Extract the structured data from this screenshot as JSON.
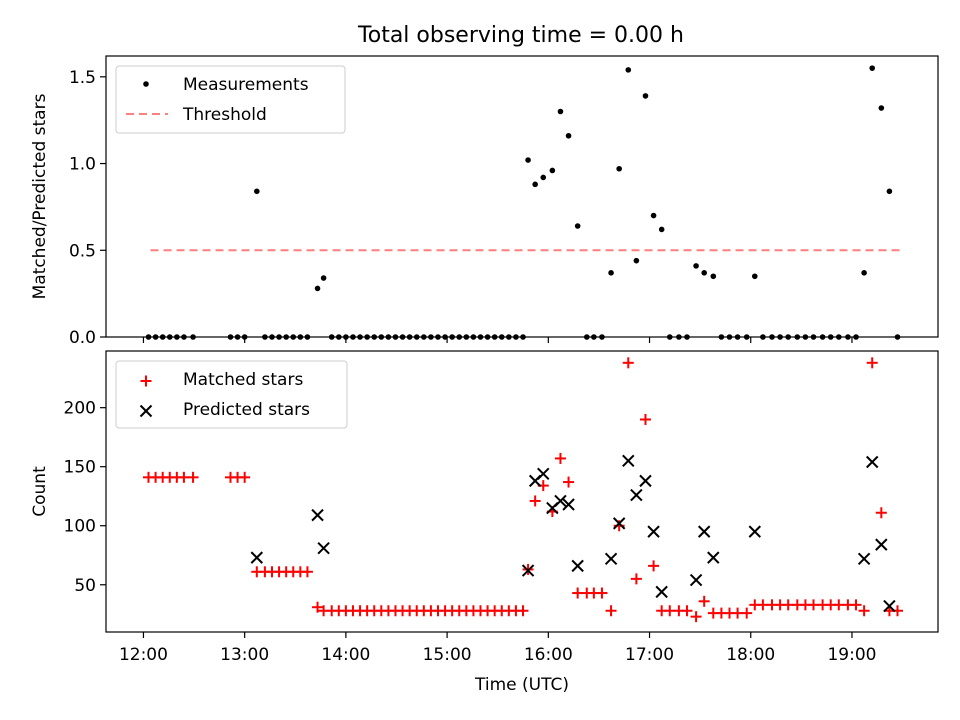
{
  "title": "Total observing time = 0.00 h",
  "colors": {
    "measure": "#000000",
    "threshold": "#ff7f7f",
    "matched": "#ff0000",
    "predicted": "#000000"
  },
  "chart_data": [
    {
      "type": "scatter",
      "ylabel": "Matched/Predicted stars",
      "ylim": [
        0,
        1.62
      ],
      "yticks": [
        0.0,
        0.5,
        1.0,
        1.5
      ],
      "ytick_labels": [
        "0.0",
        "0.5",
        "1.0",
        "1.5"
      ],
      "xlim_hours": [
        11.63,
        19.85
      ],
      "legend": {
        "placement": "top-left",
        "entries": [
          "Measurements",
          "Threshold"
        ]
      },
      "threshold": {
        "name": "Threshold",
        "value": 0.5,
        "x_range_hours": [
          12.07,
          19.48
        ]
      },
      "series": [
        {
          "name": "Measurements",
          "marker": "dot",
          "x_hours": [
            12.05,
            12.12,
            12.19,
            12.26,
            12.33,
            12.4,
            12.49,
            12.86,
            12.93,
            13.0,
            13.12,
            13.2,
            13.27,
            13.34,
            13.41,
            13.48,
            13.55,
            13.62,
            13.72,
            13.78,
            13.86,
            13.93,
            14.0,
            14.07,
            14.14,
            14.21,
            14.28,
            14.35,
            14.42,
            14.49,
            14.56,
            14.63,
            14.7,
            14.77,
            14.84,
            14.91,
            14.98,
            15.05,
            15.12,
            15.19,
            15.26,
            15.33,
            15.4,
            15.47,
            15.54,
            15.61,
            15.68,
            15.75,
            15.8,
            15.87,
            15.95,
            16.04,
            16.12,
            16.2,
            16.29,
            16.38,
            16.45,
            16.53,
            16.62,
            16.7,
            16.79,
            16.87,
            16.96,
            17.04,
            17.12,
            17.2,
            17.29,
            17.37,
            17.46,
            17.54,
            17.63,
            17.71,
            17.79,
            17.87,
            17.96,
            18.04,
            18.12,
            18.21,
            18.29,
            18.37,
            18.46,
            18.54,
            18.62,
            18.71,
            18.79,
            18.87,
            18.96,
            19.04,
            19.12,
            19.2,
            19.29,
            19.37,
            19.45
          ],
          "y": [
            0,
            0,
            0,
            0,
            0,
            0,
            0,
            0,
            0,
            0,
            0.84,
            0,
            0,
            0,
            0,
            0,
            0,
            0,
            0.28,
            0.34,
            0,
            0,
            0,
            0,
            0,
            0,
            0,
            0,
            0,
            0,
            0,
            0,
            0,
            0,
            0,
            0,
            0,
            0,
            0,
            0,
            0,
            0,
            0,
            0,
            0,
            0,
            0,
            0,
            1.02,
            0.88,
            0.92,
            0.96,
            1.3,
            1.16,
            0.64,
            0,
            0,
            0,
            0.37,
            0.97,
            1.54,
            0.44,
            1.39,
            0.7,
            0.62,
            0,
            0,
            0,
            0.41,
            0.37,
            0.35,
            0,
            0,
            0,
            0,
            0.35,
            0,
            0,
            0,
            0,
            0,
            0,
            0,
            0,
            0,
            0,
            0,
            0,
            0.37,
            1.55,
            1.32,
            0.84,
            0
          ]
        }
      ]
    },
    {
      "type": "scatter",
      "ylabel": "Count",
      "xlabel": "Time (UTC)",
      "ylim": [
        10,
        248
      ],
      "yticks": [
        50,
        100,
        150,
        200
      ],
      "ytick_labels": [
        "50",
        "100",
        "150",
        "200"
      ],
      "xlim_hours": [
        11.63,
        19.85
      ],
      "xticks_hours": [
        12,
        13,
        14,
        15,
        16,
        17,
        18,
        19
      ],
      "xtick_labels": [
        "12:00",
        "13:00",
        "14:00",
        "15:00",
        "16:00",
        "17:00",
        "18:00",
        "19:00"
      ],
      "legend": {
        "placement": "top-left",
        "entries": [
          "Matched stars",
          "Predicted stars"
        ]
      },
      "series": [
        {
          "name": "Matched stars",
          "marker": "plus",
          "x_hours": [
            12.05,
            12.12,
            12.19,
            12.26,
            12.33,
            12.4,
            12.49,
            12.86,
            12.93,
            13.0,
            13.12,
            13.2,
            13.27,
            13.34,
            13.41,
            13.48,
            13.55,
            13.62,
            13.72,
            13.78,
            13.86,
            13.93,
            14.0,
            14.07,
            14.14,
            14.21,
            14.28,
            14.35,
            14.42,
            14.49,
            14.56,
            14.63,
            14.7,
            14.77,
            14.84,
            14.91,
            14.98,
            15.05,
            15.12,
            15.19,
            15.26,
            15.33,
            15.4,
            15.47,
            15.54,
            15.61,
            15.68,
            15.75,
            15.8,
            15.87,
            15.95,
            16.04,
            16.12,
            16.2,
            16.29,
            16.38,
            16.45,
            16.53,
            16.62,
            16.7,
            16.79,
            16.87,
            16.96,
            17.04,
            17.12,
            17.2,
            17.29,
            17.37,
            17.46,
            17.54,
            17.63,
            17.71,
            17.79,
            17.87,
            17.96,
            18.04,
            18.12,
            18.21,
            18.29,
            18.37,
            18.46,
            18.54,
            18.62,
            18.71,
            18.79,
            18.87,
            18.96,
            19.04,
            19.12,
            19.2,
            19.29,
            19.37,
            19.45
          ],
          "y": [
            141,
            141,
            141,
            141,
            141,
            141,
            141,
            141,
            141,
            141,
            61,
            61,
            61,
            61,
            61,
            61,
            61,
            61,
            31,
            28,
            28,
            28,
            28,
            28,
            28,
            28,
            28,
            28,
            28,
            28,
            28,
            28,
            28,
            28,
            28,
            28,
            28,
            28,
            28,
            28,
            28,
            28,
            28,
            28,
            28,
            28,
            28,
            28,
            63,
            121,
            134,
            112,
            157,
            137,
            43,
            43,
            43,
            43,
            28,
            100,
            238,
            55,
            190,
            66,
            28,
            28,
            28,
            28,
            23,
            36,
            26,
            26,
            26,
            26,
            26,
            33,
            33,
            33,
            33,
            33,
            33,
            33,
            33,
            33,
            33,
            33,
            33,
            33,
            28,
            238,
            111,
            28,
            28
          ]
        },
        {
          "name": "Predicted stars",
          "marker": "x",
          "x_hours": [
            13.12,
            13.72,
            13.78,
            15.8,
            15.87,
            15.95,
            16.04,
            16.12,
            16.2,
            16.29,
            16.62,
            16.7,
            16.79,
            16.87,
            16.96,
            17.04,
            17.12,
            17.46,
            17.54,
            17.63,
            18.04,
            19.12,
            19.2,
            19.29,
            19.37
          ],
          "y": [
            73,
            109,
            81,
            62,
            138,
            144,
            115,
            121,
            118,
            66,
            72,
            102,
            155,
            126,
            138,
            95,
            44,
            54,
            95,
            73,
            95,
            72,
            154,
            84,
            32
          ]
        }
      ]
    }
  ]
}
